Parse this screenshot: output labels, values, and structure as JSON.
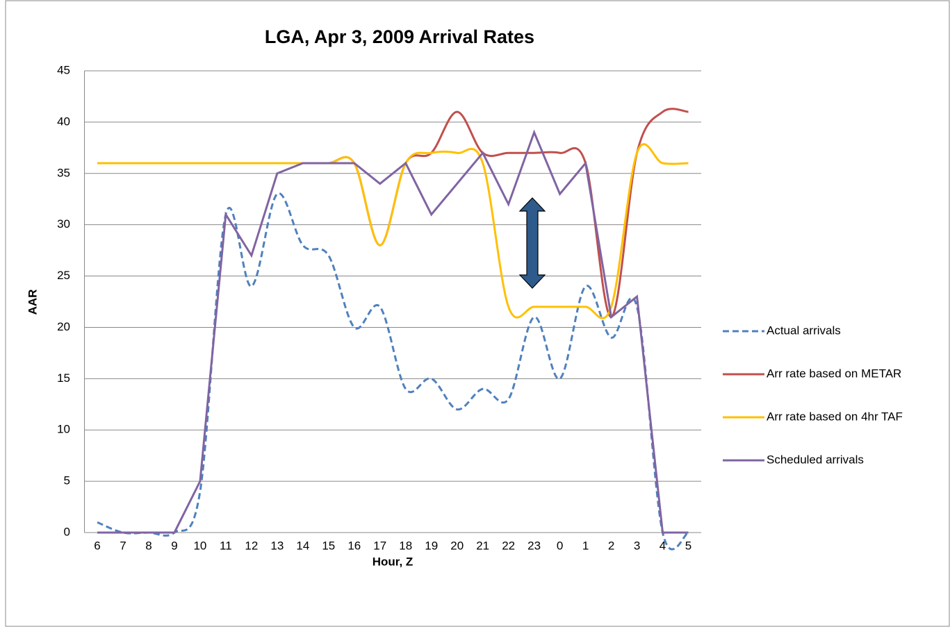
{
  "chart_data": {
    "type": "line",
    "title": "LGA, Apr 3, 2009 Arrival Rates",
    "x_label": "Hour, Z",
    "y_label": "AAR",
    "categories": [
      "6",
      "7",
      "8",
      "9",
      "10",
      "11",
      "12",
      "13",
      "14",
      "15",
      "16",
      "17",
      "18",
      "19",
      "20",
      "21",
      "22",
      "23",
      "0",
      "1",
      "2",
      "3",
      "4",
      "5"
    ],
    "series": [
      {
        "name": "Actual arrivals",
        "color": "#4f81bd",
        "dashed": true,
        "smooth": true,
        "values": [
          1,
          0,
          0,
          0,
          4,
          31,
          24,
          33,
          28,
          27,
          20,
          22,
          14,
          15,
          12,
          14,
          13,
          21,
          15,
          24,
          19,
          22,
          0,
          0
        ]
      },
      {
        "name": "Arr rate based on METAR",
        "color": "#c0504d",
        "dashed": false,
        "smooth": true,
        "values": [
          36,
          36,
          36,
          36,
          36,
          36,
          36,
          36,
          36,
          36,
          36,
          28,
          36,
          37,
          41,
          37,
          37,
          37,
          37,
          36,
          21,
          37,
          41,
          41
        ]
      },
      {
        "name": "Arr rate based on 4hr TAF",
        "color": "#ffc000",
        "dashed": false,
        "smooth": true,
        "values": [
          36,
          36,
          36,
          36,
          36,
          36,
          36,
          36,
          36,
          36,
          36,
          28,
          36,
          37,
          37,
          36,
          22,
          22,
          22,
          22,
          22,
          37,
          36,
          36
        ]
      },
      {
        "name": "Scheduled arrivals",
        "color": "#8064a2",
        "dashed": false,
        "smooth": false,
        "values": [
          0,
          0,
          0,
          0,
          5,
          31,
          27,
          35,
          36,
          36,
          36,
          34,
          36,
          31,
          34,
          37,
          32,
          39,
          33,
          36,
          21,
          23,
          0,
          0
        ]
      }
    ],
    "ylim": [
      0,
      45
    ],
    "yticks": [
      0,
      5,
      10,
      15,
      20,
      25,
      30,
      35,
      40,
      45
    ],
    "grid": true,
    "legend": "right"
  }
}
